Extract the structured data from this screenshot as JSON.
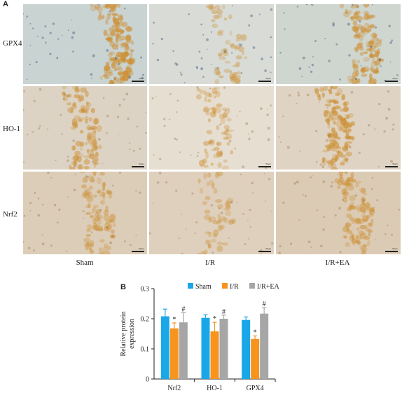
{
  "panel_a": {
    "letter": "A",
    "rows": [
      "GPX4",
      "HO-1",
      "Nrf2"
    ],
    "columns": [
      "Sham",
      "I/R",
      "I/R+EA"
    ],
    "scale_label": "50μm"
  },
  "panel_b": {
    "letter": "B"
  },
  "chart_data": {
    "type": "bar",
    "categories": [
      "Nrf2",
      "HO-1",
      "GPX4"
    ],
    "ylabel": "Relative protein expression",
    "ylim": [
      0,
      0.3
    ],
    "yticks": [
      0,
      0.1,
      0.2,
      0.3
    ],
    "series": [
      {
        "name": "Sham",
        "color": "#1aa7e8",
        "values": [
          0.208,
          0.203,
          0.196
        ],
        "errors": [
          0.024,
          0.01,
          0.01
        ],
        "marks": [
          "",
          "",
          ""
        ]
      },
      {
        "name": "I/R",
        "color": "#f7941d",
        "values": [
          0.168,
          0.158,
          0.133
        ],
        "errors": [
          0.018,
          0.03,
          0.01
        ],
        "marks": [
          "*",
          "*",
          "*"
        ]
      },
      {
        "name": "I/R+EA",
        "color": "#a6a6a6",
        "values": [
          0.188,
          0.2,
          0.217
        ],
        "errors": [
          0.032,
          0.012,
          0.02
        ],
        "marks": [
          "#",
          "#",
          "#"
        ]
      }
    ]
  }
}
